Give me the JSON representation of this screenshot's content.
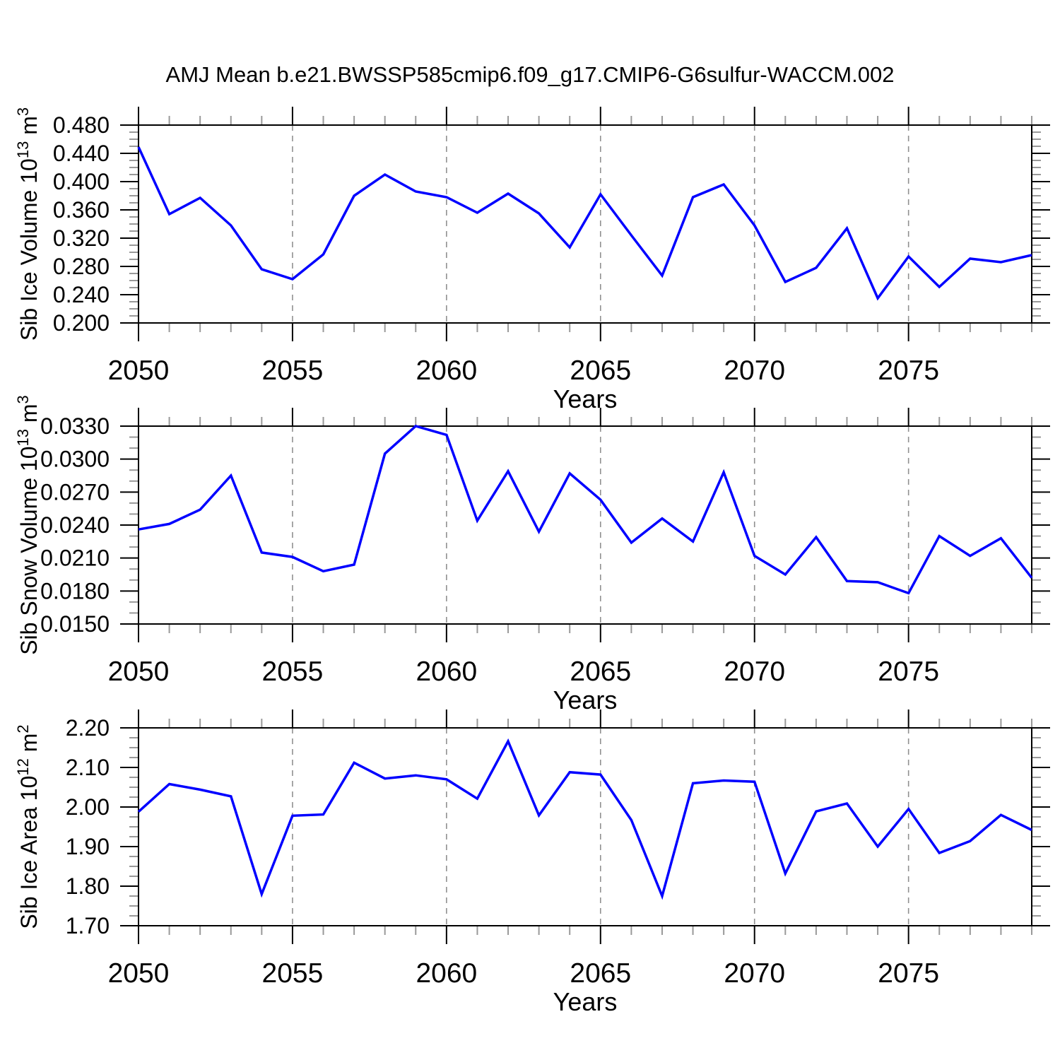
{
  "title": "AMJ Mean b.e21.BWSSP585cmip6.f09_g17.CMIP6-G6sulfur-WACCM.002",
  "xlabel": "Years",
  "years": [
    2050,
    2051,
    2052,
    2053,
    2054,
    2055,
    2056,
    2057,
    2058,
    2059,
    2060,
    2061,
    2062,
    2063,
    2064,
    2065,
    2066,
    2067,
    2068,
    2069,
    2070,
    2071,
    2072,
    2073,
    2074,
    2075,
    2076,
    2077,
    2078,
    2079
  ],
  "x_major_ticks": [
    "2050",
    "2055",
    "2060",
    "2065",
    "2070",
    "2075"
  ],
  "x_major_values": [
    2050,
    2055,
    2060,
    2065,
    2070,
    2075
  ],
  "grid_x": [
    2055,
    2060,
    2065,
    2070,
    2075
  ],
  "colors": {
    "line": "#0000ff",
    "frame": "#000000",
    "major_tick": "#000000",
    "minor_tick": "#999999",
    "grid": "#909090",
    "text": "#000000"
  },
  "chart_data": [
    {
      "type": "line",
      "name": "sib-ice-volume",
      "ylabel_text": "Sib Ice Volume 10^13 m^3",
      "ylabel_parts": [
        {
          "t": "Sib Ice Volume 10"
        },
        {
          "t": "13",
          "sup": true
        },
        {
          "t": " m"
        },
        {
          "t": "3",
          "sup": true
        }
      ],
      "xlabel": "Years",
      "ylim": [
        0.2,
        0.48
      ],
      "ytick_values": [
        0.2,
        0.24,
        0.28,
        0.32,
        0.36,
        0.4,
        0.44,
        0.48
      ],
      "ytick_labels": [
        "0.200",
        "0.240",
        "0.280",
        "0.320",
        "0.360",
        "0.400",
        "0.440",
        "0.480"
      ],
      "y_minor_step": 0.01,
      "values": [
        0.449,
        0.354,
        0.377,
        0.338,
        0.276,
        0.262,
        0.297,
        0.38,
        0.41,
        0.386,
        0.378,
        0.356,
        0.383,
        0.355,
        0.307,
        0.382,
        0.324,
        0.267,
        0.378,
        0.396,
        0.338,
        0.258,
        0.278,
        0.334,
        0.235,
        0.294,
        0.251,
        0.291,
        0.286,
        0.296
      ]
    },
    {
      "type": "line",
      "name": "sib-snow-volume",
      "ylabel_text": "Sib Snow Volume 10^13 m^3",
      "ylabel_parts": [
        {
          "t": "Sib Snow Volume 10"
        },
        {
          "t": "13",
          "sup": true
        },
        {
          "t": " m"
        },
        {
          "t": "3",
          "sup": true
        }
      ],
      "xlabel": "Years",
      "ylim": [
        0.015,
        0.033
      ],
      "ytick_values": [
        0.015,
        0.018,
        0.021,
        0.024,
        0.027,
        0.03,
        0.033
      ],
      "ytick_labels": [
        "0.0150",
        "0.0180",
        "0.0210",
        "0.0240",
        "0.0270",
        "0.0300",
        "0.0330"
      ],
      "y_minor_step": 0.001,
      "values": [
        0.0236,
        0.0241,
        0.0254,
        0.0285,
        0.0215,
        0.0211,
        0.0198,
        0.0204,
        0.0305,
        0.033,
        0.0322,
        0.0244,
        0.0289,
        0.0234,
        0.0287,
        0.0263,
        0.0224,
        0.0246,
        0.0225,
        0.0288,
        0.0212,
        0.0195,
        0.0229,
        0.0189,
        0.0188,
        0.0178,
        0.023,
        0.0212,
        0.0228,
        0.0192
      ]
    },
    {
      "type": "line",
      "name": "sib-ice-area",
      "ylabel_text": "Sib Ice Area 10^12 m^2",
      "ylabel_parts": [
        {
          "t": "Sib Ice Area 10"
        },
        {
          "t": "12",
          "sup": true
        },
        {
          "t": " m"
        },
        {
          "t": "2",
          "sup": true
        }
      ],
      "xlabel": "Years",
      "ylim": [
        1.7,
        2.2
      ],
      "ytick_values": [
        1.7,
        1.8,
        1.9,
        2.0,
        2.1,
        2.2
      ],
      "ytick_labels": [
        "1.70",
        "1.80",
        "1.90",
        "2.00",
        "2.10",
        "2.20"
      ],
      "y_minor_step": 0.025,
      "values": [
        1.988,
        2.058,
        2.044,
        2.027,
        1.78,
        1.978,
        1.981,
        2.112,
        2.072,
        2.08,
        2.07,
        2.021,
        2.166,
        1.979,
        2.088,
        2.082,
        1.967,
        1.775,
        2.06,
        2.067,
        2.064,
        1.832,
        1.989,
        2.009,
        1.9,
        1.995,
        1.884,
        1.914,
        1.98,
        1.942
      ]
    }
  ]
}
